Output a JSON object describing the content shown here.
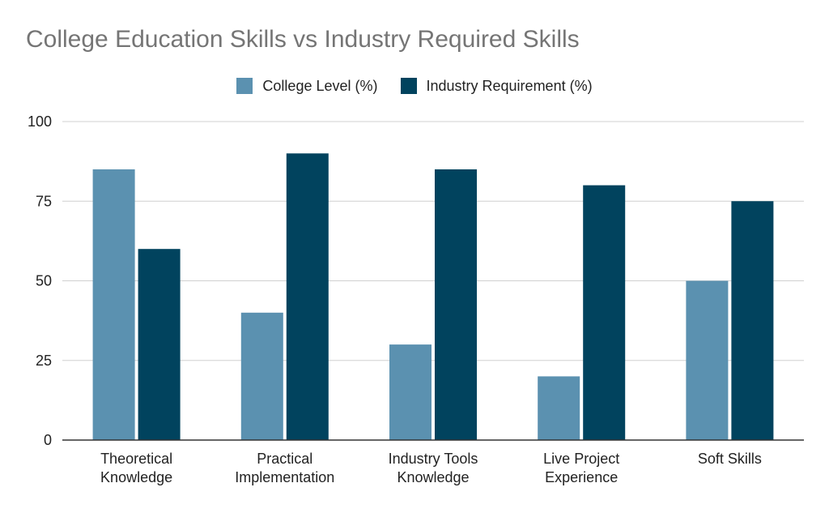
{
  "chart_data": {
    "type": "bar",
    "title": "College Education Skills vs Industry Required Skills",
    "categories": [
      [
        "Theoretical",
        "Knowledge"
      ],
      [
        "Practical",
        "Implementation"
      ],
      [
        "Industry Tools",
        "Knowledge"
      ],
      [
        "Live Project",
        "Experience"
      ],
      [
        "Soft Skills"
      ]
    ],
    "series": [
      {
        "name": "College Level (%)",
        "color": "#5b91b0",
        "values": [
          85,
          40,
          30,
          20,
          50
        ]
      },
      {
        "name": "Industry Requirement (%)",
        "color": "#01435e",
        "values": [
          60,
          90,
          85,
          80,
          75
        ]
      }
    ],
    "ylim": [
      0,
      100
    ],
    "yticks": [
      0,
      25,
      50,
      75,
      100
    ],
    "grid": true,
    "legend_position": "top-center",
    "xlabel": "",
    "ylabel": ""
  }
}
